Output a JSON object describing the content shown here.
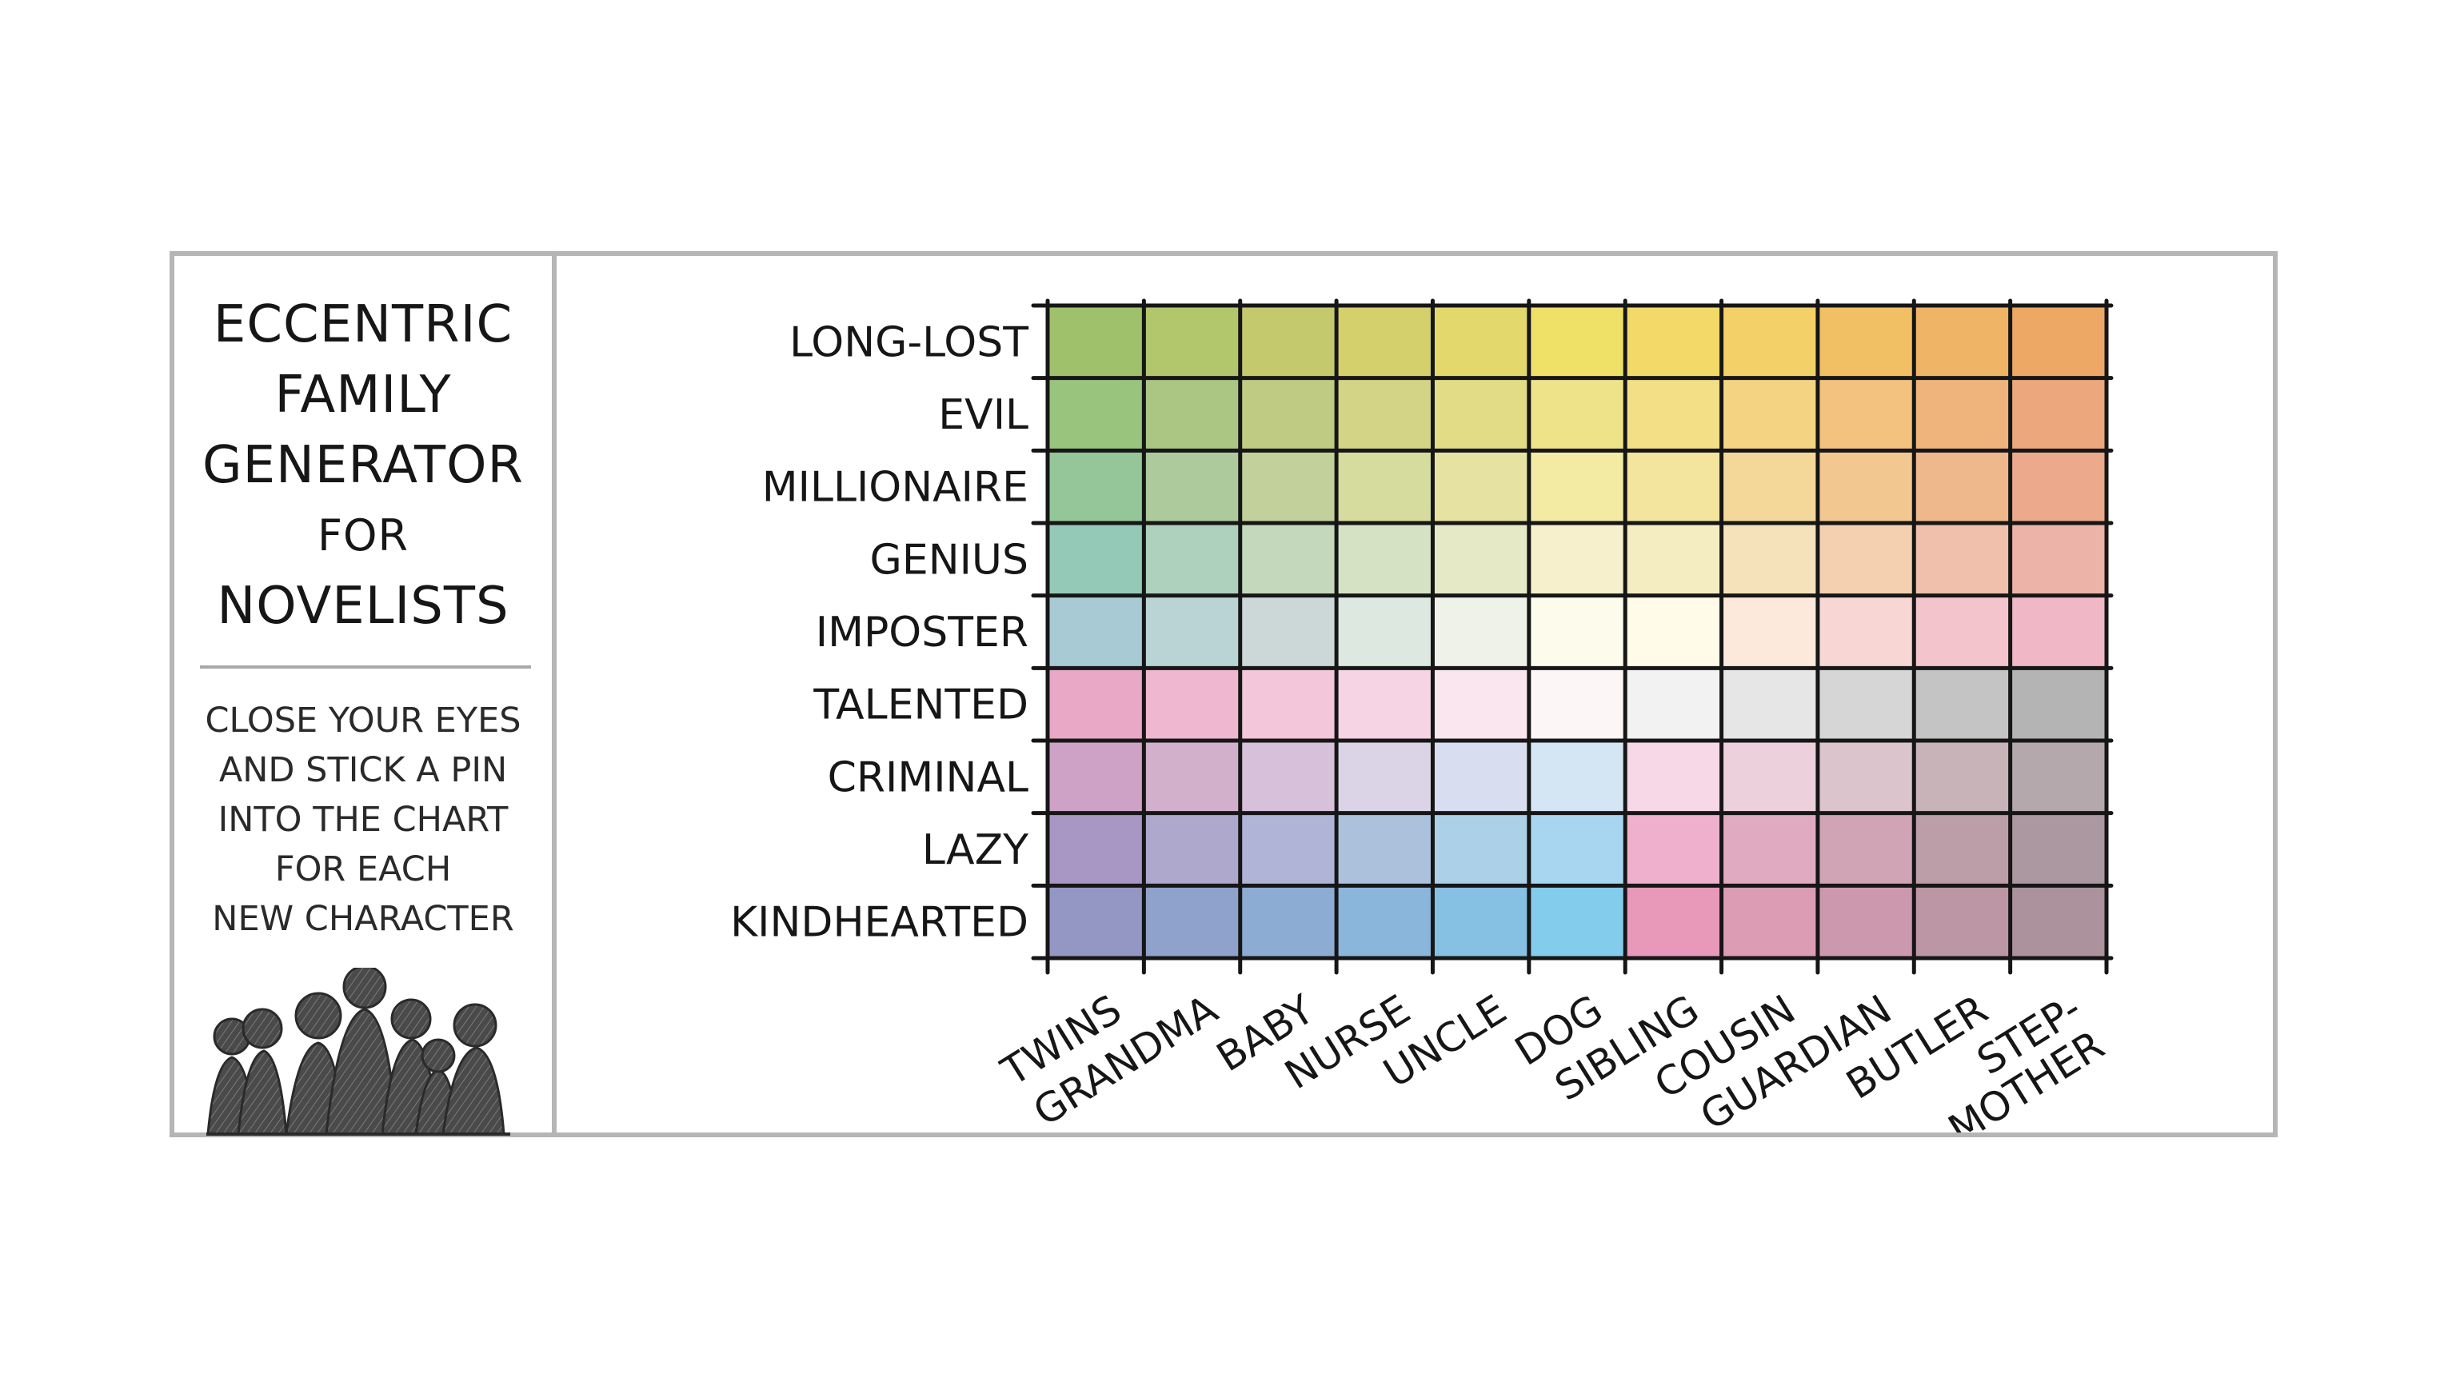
{
  "title_lines": [
    "ECCENTRIC",
    "FAMILY",
    "GENERATOR",
    "FOR",
    "NOVELISTS"
  ],
  "instruction_lines": [
    "CLOSE YOUR EYES",
    "AND STICK A PIN",
    "INTO THE CHART",
    "FOR EACH",
    "NEW CHARACTER"
  ],
  "icon": "family-silhouettes-icon",
  "colors": {
    "frame": "#b5b5b5",
    "ink": "#161616"
  },
  "chart_data": {
    "type": "table",
    "rows": [
      "LONG-LOST",
      "EVIL",
      "MILLIONAIRE",
      "GENIUS",
      "IMPOSTER",
      "TALENTED",
      "CRIMINAL",
      "LAZY",
      "KINDHEARTED"
    ],
    "columns": [
      "TWINS",
      "GRANDMA",
      "BABY",
      "NURSE",
      "UNCLE",
      "DOG",
      "SIBLING",
      "COUSIN",
      "GUARDIAN",
      "BUTLER",
      "STEP-\nMOTHER"
    ],
    "cell_colors": [
      [
        "#a0c16b",
        "#b2c66c",
        "#c4c96e",
        "#d4d06c",
        "#e2d86c",
        "#efe068",
        "#f3da68",
        "#f4d068",
        "#f2c064",
        "#efb466",
        "#eca864"
      ],
      [
        "#98c47e",
        "#abc682",
        "#bfcb82",
        "#d3d486",
        "#e2dc86",
        "#efe38a",
        "#f2df86",
        "#f4d482",
        "#f2c27e",
        "#efb47c",
        "#eca87c"
      ],
      [
        "#94c69a",
        "#acca9c",
        "#c2d09c",
        "#d6dc9e",
        "#e6e2a2",
        "#f3eaa4",
        "#f3e49e",
        "#f4d89a",
        "#f3c890",
        "#efb88c",
        "#eca98c"
      ],
      [
        "#94c9b8",
        "#add1bc",
        "#c4d9bc",
        "#d6e2c4",
        "#e6e9c6",
        "#f6f1cc",
        "#f5edc2",
        "#f5e2ba",
        "#f4d0b0",
        "#f0c0ac",
        "#ecb4a8"
      ],
      [
        "#a8cad4",
        "#bad4d6",
        "#ccd8d8",
        "#dce8e0",
        "#eef2e8",
        "#fdfbec",
        "#fffbe8",
        "#fde9dc",
        "#f8d6d4",
        "#f4c4cc",
        "#f0b8c6"
      ],
      [
        "#e8a8c6",
        "#efb8d0",
        "#f3c6da",
        "#f6d4e4",
        "#f9e6ee",
        "#fdf6f6",
        "#f2f2f2",
        "#e6e6e6",
        "#d6d6d6",
        "#c4c4c4",
        "#b4b4b4"
      ],
      [
        "#cea2c6",
        "#d2b0cc",
        "#d6c0da",
        "#dad4e6",
        "#d8def0",
        "#d4e6f4",
        "#f6d8e6",
        "#ecd0dc",
        "#dcc4cc",
        "#c8b4b8",
        "#b4a8ac"
      ],
      [
        "#a896c4",
        "#aea8cc",
        "#b0b4d6",
        "#acc2dc",
        "#acd0e8",
        "#a8d6f0",
        "#eeb0cc",
        "#e0aac0",
        "#d0a4b4",
        "#bc9ea8",
        "#ac98a0"
      ],
      [
        "#9496c4",
        "#8ea2cc",
        "#8cacd4",
        "#8ab6dc",
        "#86c0e2",
        "#84ccec",
        "#e898b8",
        "#dc9cb4",
        "#cc98ae",
        "#bc96a4",
        "#ac929c"
      ]
    ]
  }
}
